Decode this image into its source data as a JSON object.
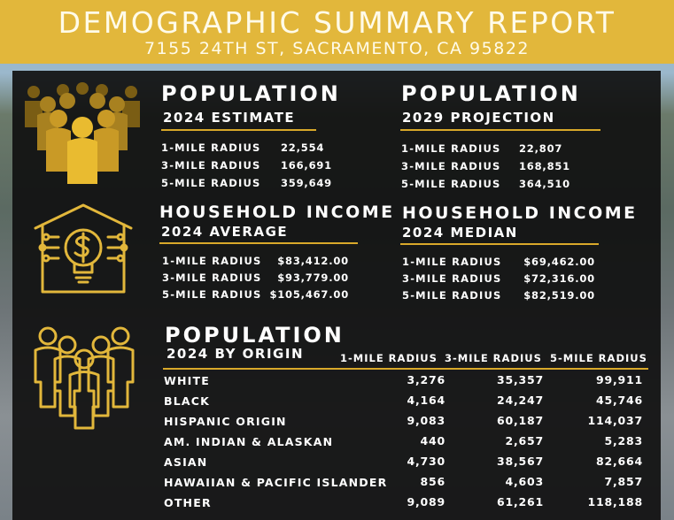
{
  "header": {
    "title": "DEMOGRAPHIC SUMMARY REPORT",
    "address": "7155 24TH ST, SACRAMENTO, CA 95822"
  },
  "colors": {
    "gold": "#e2b73b",
    "panel": "#101010",
    "accent_rule": "#d9a92a"
  },
  "population_2024": {
    "title": "POPULATION",
    "subtitle": "2024 ESTIMATE",
    "rows": [
      {
        "label": "1-MILE RADIUS",
        "value": "22,554"
      },
      {
        "label": "3-MILE RADIUS",
        "value": "166,691"
      },
      {
        "label": "5-MILE RADIUS",
        "value": "359,649"
      }
    ]
  },
  "population_2029": {
    "title": "POPULATION",
    "subtitle": "2029 PROJECTION",
    "rows": [
      {
        "label": "1-MILE RADIUS",
        "value": "22,807"
      },
      {
        "label": "3-MILE RADIUS",
        "value": "168,851"
      },
      {
        "label": "5-MILE RADIUS",
        "value": "364,510"
      }
    ]
  },
  "income_average": {
    "title": "HOUSEHOLD INCOME",
    "subtitle": "2024 AVERAGE",
    "rows": [
      {
        "label": "1-MILE RADIUS",
        "value": "$83,412.00"
      },
      {
        "label": "3-MILE RADIUS",
        "value": "$93,779.00"
      },
      {
        "label": "5-MILE RADIUS",
        "value": "$105,467.00"
      }
    ]
  },
  "income_median": {
    "title": "HOUSEHOLD INCOME",
    "subtitle": "2024 MEDIAN",
    "rows": [
      {
        "label": "1-MILE RADIUS",
        "value": "$69,462.00"
      },
      {
        "label": "3-MILE RADIUS",
        "value": "$72,316.00"
      },
      {
        "label": "5-MILE RADIUS",
        "value": "$82,519.00"
      }
    ]
  },
  "origin": {
    "title": "POPULATION",
    "subtitle": "2024 BY ORIGIN",
    "columns": [
      "1-MILE RADIUS",
      "3-MILE RADIUS",
      "5-MILE RADIUS"
    ],
    "rows": [
      {
        "label": "WHITE",
        "values": [
          "3,276",
          "35,357",
          "99,911"
        ]
      },
      {
        "label": "BLACK",
        "values": [
          "4,164",
          "24,247",
          "45,746"
        ]
      },
      {
        "label": "HISPANIC ORIGIN",
        "values": [
          "9,083",
          "60,187",
          "114,037"
        ]
      },
      {
        "label": "AM. INDIAN & ALASKAN",
        "values": [
          "440",
          "2,657",
          "5,283"
        ]
      },
      {
        "label": "ASIAN",
        "values": [
          "4,730",
          "38,567",
          "82,664"
        ]
      },
      {
        "label": "HAWAIIAN & PACIFIC ISLANDER",
        "values": [
          "856",
          "4,603",
          "7,857"
        ]
      },
      {
        "label": "OTHER",
        "values": [
          "9,089",
          "61,261",
          "118,188"
        ]
      }
    ]
  },
  "icons": {
    "population": "crowd-icon",
    "income": "house-lightbulb-dollar-icon",
    "origin": "group-people-outline-icon"
  }
}
